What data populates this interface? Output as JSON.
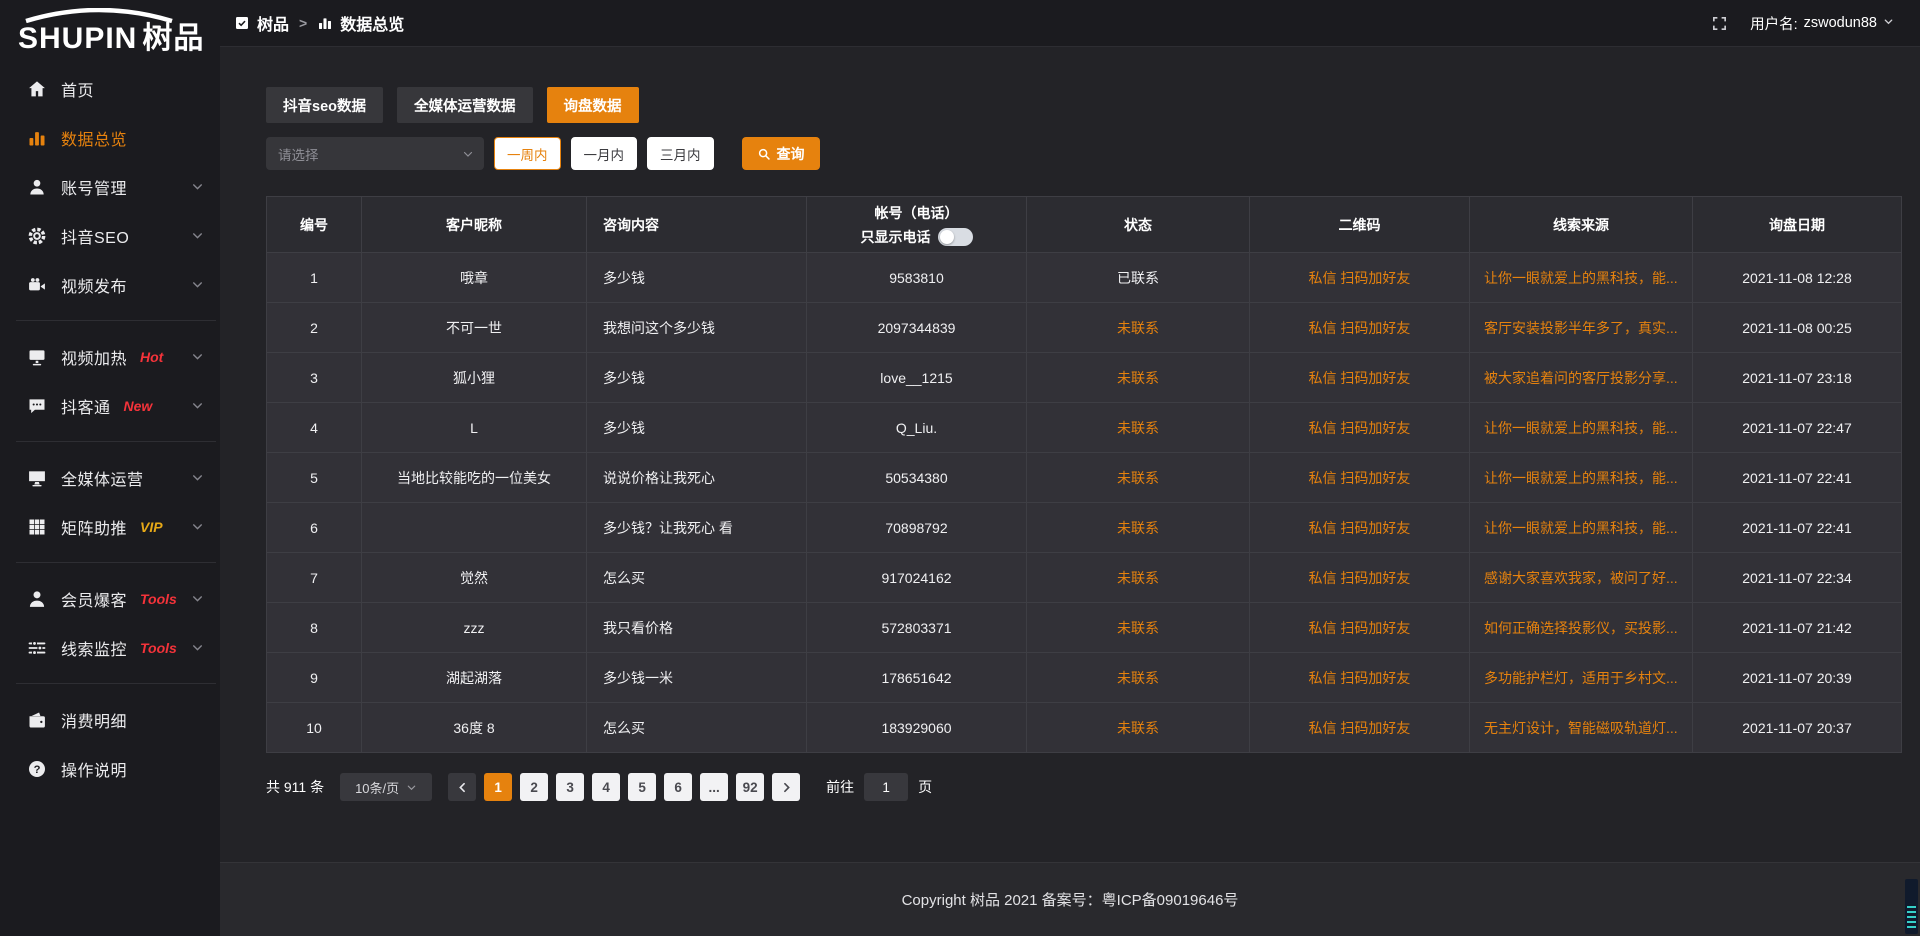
{
  "colors": {
    "accent_orange": "#e6820e",
    "badge_red": "#f5333a",
    "badge_yellow": "#e7a917"
  },
  "sidebar": {
    "logo_main": "SHUPIN",
    "logo_cn": "树品",
    "items": [
      {
        "icon": "home-icon",
        "label": "首页",
        "active": false,
        "chevron": false,
        "badge": null
      },
      {
        "icon": "bar-chart-icon",
        "label": "数据总览",
        "active": true,
        "chevron": false,
        "badge": null
      },
      {
        "icon": "user-icon",
        "label": "账号管理",
        "active": false,
        "chevron": true,
        "badge": null
      },
      {
        "icon": "gear-icon",
        "label": "抖音SEO",
        "active": false,
        "chevron": true,
        "badge": null
      },
      {
        "icon": "video-camera-icon",
        "label": "视频发布",
        "active": false,
        "chevron": true,
        "badge": null,
        "divider_after": true
      },
      {
        "icon": "monitor-icon",
        "label": "视频加热",
        "active": false,
        "chevron": true,
        "badge": "Hot",
        "badge_color": "#f5333a"
      },
      {
        "icon": "chat-icon",
        "label": "抖客通",
        "active": false,
        "chevron": true,
        "badge": "New",
        "badge_color": "#f5333a",
        "divider_after": true
      },
      {
        "icon": "desktop-icon",
        "label": "全媒体运营",
        "active": false,
        "chevron": true,
        "badge": null
      },
      {
        "icon": "grid-icon",
        "label": "矩阵助推",
        "active": false,
        "chevron": true,
        "badge": "VIP",
        "badge_color": "#e7a917",
        "divider_after": true
      },
      {
        "icon": "user-solid-icon",
        "label": "会员爆客",
        "active": false,
        "chevron": true,
        "badge": "Tools",
        "badge_color": "#f5333a"
      },
      {
        "icon": "sliders-icon",
        "label": "线索监控",
        "active": false,
        "chevron": true,
        "badge": "Tools",
        "badge_color": "#f5333a",
        "divider_after": true
      },
      {
        "icon": "wallet-icon",
        "label": "消费明细",
        "active": false,
        "chevron": false,
        "badge": null
      },
      {
        "icon": "question-icon",
        "label": "操作说明",
        "active": false,
        "chevron": false,
        "badge": null
      }
    ]
  },
  "header": {
    "breadcrumb_root": "树品",
    "breadcrumb_sep": ">",
    "breadcrumb_current": "数据总览",
    "username_label": "用户名:",
    "username": "zswodun88"
  },
  "tabs": {
    "items": [
      {
        "label": "抖音seo数据",
        "active": false
      },
      {
        "label": "全媒体运营数据",
        "active": false
      },
      {
        "label": "询盘数据",
        "active": true
      }
    ]
  },
  "filters": {
    "select_placeholder": "请选择",
    "periods": [
      {
        "label": "一周内",
        "active": true
      },
      {
        "label": "一月内",
        "active": false
      },
      {
        "label": "三月内",
        "active": false
      }
    ],
    "search_label": "查询"
  },
  "table": {
    "columns": [
      "编号",
      "客户昵称",
      "咨询内容",
      "帐号（电话）",
      "状态",
      "二维码",
      "线索来源",
      "询盘日期"
    ],
    "phone_toggle_label": "只显示电话",
    "rows": [
      {
        "no": "1",
        "nickname": "哦章",
        "content": "多少钱",
        "account": "9583810",
        "status": "已联系",
        "contacted": true,
        "qr": "私信 扫码加好友",
        "source": "让你一眼就爱上的黑科技，能...",
        "date": "2021-11-08 12:28"
      },
      {
        "no": "2",
        "nickname": "不可一世",
        "content": "我想问这个多少钱",
        "account": "2097344839",
        "status": "未联系",
        "contacted": false,
        "qr": "私信 扫码加好友",
        "source": "客厅安装投影半年多了，真实...",
        "date": "2021-11-08 00:25"
      },
      {
        "no": "3",
        "nickname": "狐小狸",
        "content": "多少钱",
        "account": "love__1215",
        "status": "未联系",
        "contacted": false,
        "qr": "私信 扫码加好友",
        "source": "被大家追着问的客厅投影分享...",
        "date": "2021-11-07 23:18"
      },
      {
        "no": "4",
        "nickname": "L",
        "content": "多少钱",
        "account": "Q_Liu.",
        "status": "未联系",
        "contacted": false,
        "qr": "私信 扫码加好友",
        "source": "让你一眼就爱上的黑科技，能...",
        "date": "2021-11-07 22:47"
      },
      {
        "no": "5",
        "nickname": "当地比较能吃的一位美女",
        "content": "说说价格让我死心",
        "account": "50534380",
        "status": "未联系",
        "contacted": false,
        "qr": "私信 扫码加好友",
        "source": "让你一眼就爱上的黑科技，能...",
        "date": "2021-11-07 22:41"
      },
      {
        "no": "6",
        "nickname": "",
        "content": "多少钱？让我死心 看",
        "account": "70898792",
        "status": "未联系",
        "contacted": false,
        "qr": "私信 扫码加好友",
        "source": "让你一眼就爱上的黑科技，能...",
        "date": "2021-11-07 22:41"
      },
      {
        "no": "7",
        "nickname": "觉然",
        "content": "怎么买",
        "account": "917024162",
        "status": "未联系",
        "contacted": false,
        "qr": "私信 扫码加好友",
        "source": "感谢大家喜欢我家，被问了好...",
        "date": "2021-11-07 22:34"
      },
      {
        "no": "8",
        "nickname": "zzz",
        "content": "我只看价格",
        "account": "572803371",
        "status": "未联系",
        "contacted": false,
        "qr": "私信 扫码加好友",
        "source": "如何正确选择投影仪，买投影...",
        "date": "2021-11-07 21:42"
      },
      {
        "no": "9",
        "nickname": "湖起湖落",
        "content": "多少钱一米",
        "account": "178651642",
        "status": "未联系",
        "contacted": false,
        "qr": "私信 扫码加好友",
        "source": "多功能护栏灯，适用于乡村文...",
        "date": "2021-11-07 20:39"
      },
      {
        "no": "10",
        "nickname": "36度 8",
        "content": "怎么买",
        "account": "183929060",
        "status": "未联系",
        "contacted": false,
        "qr": "私信 扫码加好友",
        "source": "无主灯设计，智能磁吸轨道灯...",
        "date": "2021-11-07 20:37"
      }
    ]
  },
  "pagination": {
    "total_text": "共 911 条",
    "page_size": "10条/页",
    "pages": [
      "1",
      "2",
      "3",
      "4",
      "5",
      "6",
      "...",
      "92"
    ],
    "active_page": "1",
    "goto_label": "前往",
    "goto_value": "1",
    "goto_unit": "页"
  },
  "footer": {
    "copyright": "Copyright 树品 2021 备案号：粤ICP备09019646号"
  }
}
